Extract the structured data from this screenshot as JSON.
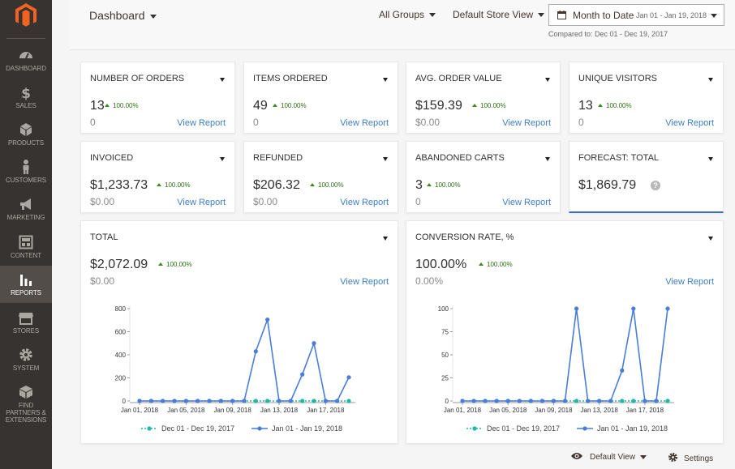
{
  "sidebar": {
    "items": [
      {
        "label": "DASHBOARD",
        "icon": "dashboard-icon"
      },
      {
        "label": "SALES",
        "icon": "dollar-icon"
      },
      {
        "label": "PRODUCTS",
        "icon": "cube-icon"
      },
      {
        "label": "CUSTOMERS",
        "icon": "person-icon"
      },
      {
        "label": "MARKETING",
        "icon": "megaphone-icon"
      },
      {
        "label": "CONTENT",
        "icon": "layout-icon"
      },
      {
        "label": "REPORTS",
        "icon": "bar-chart-icon"
      },
      {
        "label": "STORES",
        "icon": "store-icon"
      },
      {
        "label": "SYSTEM",
        "icon": "gear-icon"
      },
      {
        "label": "FIND PARTNERS & EXTENSIONS",
        "icon": "box-icon"
      }
    ],
    "active": "REPORTS"
  },
  "header": {
    "title": "Dashboard",
    "groups": "All Groups",
    "store_view": "Default Store View",
    "period_label": "Month to Date",
    "period_range": "Jan 01 - Jan 19, 2018",
    "compared_to": "Compared to: Dec 01 - Dec 19, 2017"
  },
  "cards": [
    {
      "title": "NUMBER OF ORDERS",
      "value": "13",
      "delta": "100.00%",
      "prev": "0",
      "link": "View Report"
    },
    {
      "title": "ITEMS ORDERED",
      "value": "49",
      "delta": "100.00%",
      "prev": "0",
      "link": "View Report"
    },
    {
      "title": "AVG. ORDER VALUE",
      "value": "$159.39",
      "delta": "100.00%",
      "prev": "$0.00",
      "link": "View Report"
    },
    {
      "title": "UNIQUE VISITORS",
      "value": "13",
      "delta": "100.00%",
      "prev": "0",
      "link": "View Report"
    },
    {
      "title": "INVOICED",
      "value": "$1,233.73",
      "delta": "100.00%",
      "prev": "$0.00",
      "link": "View Report"
    },
    {
      "title": "REFUNDED",
      "value": "$206.32",
      "delta": "100.00%",
      "prev": "$0.00",
      "link": "View Report"
    },
    {
      "title": "ABANDONED CARTS",
      "value": "3",
      "delta": "100.00%",
      "prev": "0",
      "link": "View Report"
    },
    {
      "title": "FORECAST: TOTAL",
      "value": "$1,869.79",
      "help": "?"
    }
  ],
  "total_card": {
    "title": "TOTAL",
    "value": "$2,072.09",
    "delta": "100.00%",
    "prev": "$0.00",
    "link": "View Report"
  },
  "conversion_card": {
    "title": "CONVERSION RATE, %",
    "value": "100.00%",
    "delta": "100.00%",
    "prev": "0.00%",
    "link": "View Report"
  },
  "chart_data": [
    {
      "type": "line",
      "x_tick_labels": [
        "Jan 01, 2018",
        "Jan 05, 2018",
        "Jan 09, 2018",
        "Jan 13, 2018",
        "Jan 17, 2018"
      ],
      "y_ticks": [
        0,
        200,
        400,
        600,
        800
      ],
      "ylim": [
        0,
        800
      ],
      "series": [
        {
          "name": "Dec 01 - Dec 19, 2017",
          "color": "#1fb7a5",
          "values": [
            0,
            0,
            0,
            0,
            0,
            0,
            0,
            0,
            0,
            0,
            0,
            0,
            0,
            0,
            0,
            0,
            0,
            0,
            0
          ]
        },
        {
          "name": "Jan 01 - Jan 19, 2018",
          "color": "#4a7cd9",
          "values": [
            0,
            0,
            0,
            0,
            0,
            0,
            0,
            0,
            0,
            0,
            430,
            705,
            0,
            0,
            230,
            500,
            0,
            0,
            205
          ]
        }
      ]
    },
    {
      "type": "line",
      "x_tick_labels": [
        "Jan 01, 2018",
        "Jan 05, 2018",
        "Jan 09, 2018",
        "Jan 13, 2018",
        "Jan 17, 2018"
      ],
      "y_ticks": [
        0,
        25,
        50,
        75,
        100
      ],
      "ylim": [
        0,
        100
      ],
      "series": [
        {
          "name": "Dec 01 - Dec 19, 2017",
          "color": "#1fb7a5",
          "values": [
            0,
            0,
            0,
            0,
            0,
            0,
            0,
            0,
            0,
            0,
            0,
            0,
            0,
            0,
            0,
            0,
            0,
            0,
            0
          ]
        },
        {
          "name": "Jan 01 - Jan 19, 2018",
          "color": "#4a7cd9",
          "values": [
            0,
            0,
            0,
            0,
            0,
            0,
            0,
            0,
            0,
            0,
            100,
            0,
            0,
            0,
            33,
            100,
            0,
            0,
            100
          ]
        }
      ]
    }
  ],
  "footer": {
    "view_label": "Default View",
    "settings_label": "Settings"
  }
}
